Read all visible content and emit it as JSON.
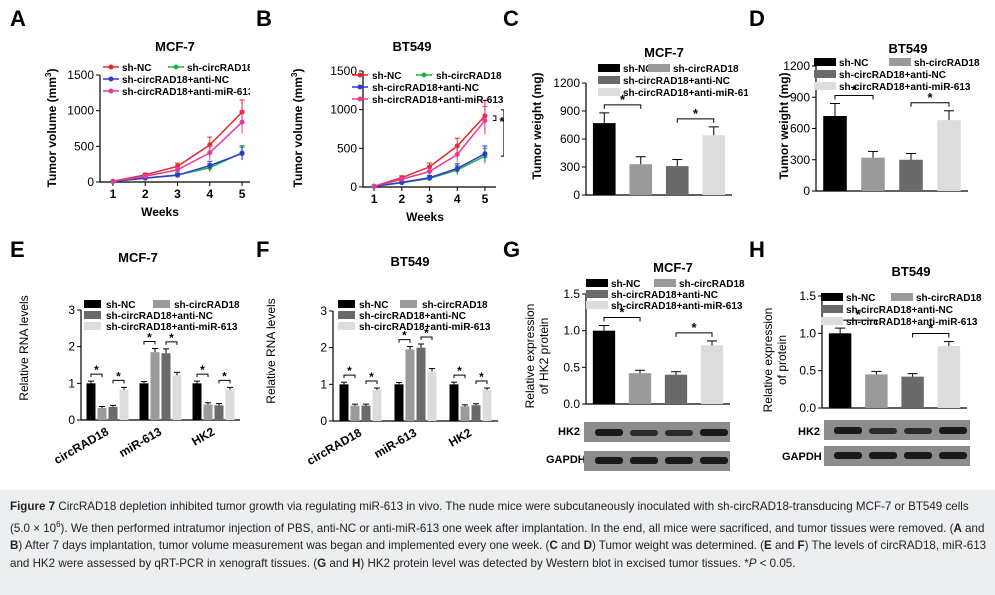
{
  "panels": {
    "A": {
      "letter": "A",
      "title": "MCF-7",
      "xlabel": "Weeks",
      "ylabel": "Tumor volume (mm3)",
      "ylabel_main": "Tumor volume (mm",
      "ylabel_sup": "3",
      "ylabel_close": ")"
    },
    "B": {
      "letter": "B",
      "title": "BT549",
      "xlabel": "Weeks",
      "ylabel": "Tumor volume (mm3)",
      "ylabel_main": "Tumor volume (mm",
      "ylabel_sup": "3",
      "ylabel_close": ")"
    },
    "C": {
      "letter": "C",
      "title": "MCF-7",
      "ylabel": "Tumor weight (mg)"
    },
    "D": {
      "letter": "D",
      "title": "BT549",
      "ylabel": "Tumor weight (mg)"
    },
    "E": {
      "letter": "E",
      "title": "MCF-7",
      "ylabel": "Relative RNA levels"
    },
    "F": {
      "letter": "F",
      "title": "BT549",
      "ylabel": "Relative RNA levels"
    },
    "G": {
      "letter": "G",
      "title": "MCF-7",
      "ylabel_line1": "Relative expression",
      "ylabel_line2": "of HK2 protein"
    },
    "H": {
      "letter": "H",
      "title": "BT549",
      "ylabel_line1": "Relative expression",
      "ylabel_line2": "of protein"
    }
  },
  "groups": [
    "sh-NC",
    "sh-circRAD18",
    "sh-circRAD18+anti-NC",
    "sh-circRAD18+anti-miR-613"
  ],
  "colors": {
    "line": [
      "#e8262a",
      "#22b24c",
      "#2b3bd0",
      "#e43b9a"
    ],
    "bar": [
      "#000000",
      "#9a9a9a",
      "#6a6a6a",
      "#dcdcdc"
    ]
  },
  "blot_labels": [
    "HK2",
    "GAPDH"
  ],
  "chart_data": [
    {
      "panel": "A",
      "type": "line",
      "title": "MCF-7",
      "xlabel": "Weeks",
      "ylabel": "Tumor volume (mm3)",
      "x": [
        1,
        2,
        3,
        4,
        5
      ],
      "xlim": [
        0.6,
        5.4
      ],
      "ylim": [
        0,
        1500
      ],
      "yticks": [
        0,
        500,
        1000,
        1500
      ],
      "series": [
        {
          "name": "sh-NC",
          "values": [
            10,
            100,
            220,
            520,
            980
          ],
          "err": [
            5,
            25,
            45,
            110,
            170
          ]
        },
        {
          "name": "sh-circRAD18",
          "values": [
            8,
            55,
            100,
            200,
            410
          ],
          "err": [
            4,
            15,
            30,
            60,
            100
          ]
        },
        {
          "name": "sh-circRAD18+anti-NC",
          "values": [
            8,
            55,
            95,
            230,
            400
          ],
          "err": [
            4,
            15,
            25,
            60,
            90
          ]
        },
        {
          "name": "sh-circRAD18+anti-miR-613",
          "values": [
            9,
            80,
            170,
            410,
            840
          ],
          "err": [
            5,
            20,
            40,
            100,
            160
          ]
        }
      ],
      "sig": [
        "*",
        "*"
      ]
    },
    {
      "panel": "B",
      "type": "line",
      "title": "BT549",
      "xlabel": "Weeks",
      "ylabel": "Tumor volume (mm3)",
      "x": [
        1,
        2,
        3,
        4,
        5
      ],
      "xlim": [
        0.6,
        5.4
      ],
      "ylim": [
        0,
        1500
      ],
      "yticks": [
        0,
        500,
        1000,
        1500
      ],
      "series": [
        {
          "name": "sh-NC",
          "values": [
            10,
            120,
            260,
            530,
            920
          ],
          "err": [
            5,
            25,
            50,
            100,
            200
          ]
        },
        {
          "name": "sh-circRAD18",
          "values": [
            8,
            55,
            110,
            220,
            400
          ],
          "err": [
            4,
            15,
            30,
            60,
            100
          ]
        },
        {
          "name": "sh-circRAD18+anti-NC",
          "values": [
            8,
            60,
            120,
            240,
            430
          ],
          "err": [
            4,
            15,
            30,
            60,
            100
          ]
        },
        {
          "name": "sh-circRAD18+anti-miR-613",
          "values": [
            9,
            100,
            200,
            420,
            860
          ],
          "err": [
            5,
            25,
            45,
            90,
            180
          ]
        }
      ],
      "sig": [
        "*",
        "*"
      ]
    },
    {
      "panel": "C",
      "type": "bar",
      "title": "MCF-7",
      "ylabel": "Tumor weight (mg)",
      "categories": [
        "sh-NC",
        "sh-circRAD18",
        "sh-circRAD18+anti-NC",
        "sh-circRAD18+anti-miR-613"
      ],
      "values": [
        770,
        330,
        310,
        640
      ],
      "err": [
        110,
        80,
        70,
        90
      ],
      "ylim": [
        0,
        1200
      ],
      "yticks": [
        0,
        300,
        600,
        900,
        1200
      ],
      "sig": [
        "*",
        "*"
      ]
    },
    {
      "panel": "D",
      "type": "bar",
      "title": "BT549",
      "ylabel": "Tumor weight (mg)",
      "categories": [
        "sh-NC",
        "sh-circRAD18",
        "sh-circRAD18+anti-NC",
        "sh-circRAD18+anti-miR-613"
      ],
      "values": [
        720,
        320,
        300,
        680
      ],
      "err": [
        120,
        60,
        60,
        90
      ],
      "ylim": [
        0,
        1200
      ],
      "yticks": [
        0,
        300,
        600,
        900,
        1200
      ],
      "sig": [
        "*",
        "*"
      ]
    },
    {
      "panel": "E",
      "type": "bar",
      "title": "MCF-7",
      "ylabel": "Relative RNA levels",
      "categories": [
        "circRAD18",
        "miR-613",
        "HK2"
      ],
      "series": [
        {
          "name": "sh-NC",
          "values": [
            1.0,
            1.0,
            1.0
          ],
          "err": [
            0.06,
            0.05,
            0.06
          ]
        },
        {
          "name": "sh-circRAD18",
          "values": [
            0.33,
            1.85,
            0.42
          ],
          "err": [
            0.04,
            0.1,
            0.05
          ]
        },
        {
          "name": "sh-circRAD18+anti-NC",
          "values": [
            0.36,
            1.82,
            0.4
          ],
          "err": [
            0.04,
            0.12,
            0.05
          ]
        },
        {
          "name": "sh-circRAD18+anti-miR-613",
          "values": [
            0.83,
            1.22,
            0.83
          ],
          "err": [
            0.06,
            0.08,
            0.06
          ]
        }
      ],
      "ylim": [
        0,
        3
      ],
      "yticks": [
        0,
        1,
        2,
        3
      ],
      "sig": [
        "*",
        "*",
        "*",
        "*",
        "*",
        "*"
      ]
    },
    {
      "panel": "F",
      "type": "bar",
      "title": "BT549",
      "ylabel": "Relative RNA levels",
      "categories": [
        "circRAD18",
        "miR-613",
        "HK2"
      ],
      "series": [
        {
          "name": "sh-NC",
          "values": [
            1.0,
            1.0,
            1.0
          ],
          "err": [
            0.06,
            0.05,
            0.06
          ]
        },
        {
          "name": "sh-circRAD18",
          "values": [
            0.42,
            1.95,
            0.4
          ],
          "err": [
            0.04,
            0.08,
            0.04
          ]
        },
        {
          "name": "sh-circRAD18+anti-NC",
          "values": [
            0.42,
            2.0,
            0.43
          ],
          "err": [
            0.04,
            0.1,
            0.04
          ]
        },
        {
          "name": "sh-circRAD18+anti-miR-613",
          "values": [
            0.85,
            1.35,
            0.85
          ],
          "err": [
            0.05,
            0.08,
            0.05
          ]
        }
      ],
      "ylim": [
        0,
        3
      ],
      "yticks": [
        0,
        1,
        2,
        3
      ],
      "sig": [
        "*",
        "*",
        "*",
        "*",
        "*",
        "*"
      ]
    },
    {
      "panel": "G",
      "type": "bar",
      "title": "MCF-7",
      "ylabel": "Relative expression of HK2 protein",
      "categories": [
        "sh-NC",
        "sh-circRAD18",
        "sh-circRAD18+anti-NC",
        "sh-circRAD18+anti-miR-613"
      ],
      "values": [
        1.0,
        0.42,
        0.4,
        0.8
      ],
      "err": [
        0.07,
        0.04,
        0.04,
        0.06
      ],
      "ylim": [
        0,
        1.5
      ],
      "yticks": [
        0.0,
        0.5,
        1.0,
        1.5
      ],
      "sig": [
        "*",
        "*"
      ]
    },
    {
      "panel": "H",
      "type": "bar",
      "title": "BT549",
      "ylabel": "Relative expression of protein",
      "categories": [
        "sh-NC",
        "sh-circRAD18",
        "sh-circRAD18+anti-NC",
        "sh-circRAD18+anti-miR-613"
      ],
      "values": [
        1.0,
        0.45,
        0.42,
        0.83
      ],
      "err": [
        0.07,
        0.04,
        0.04,
        0.06
      ],
      "ylim": [
        0,
        1.5
      ],
      "yticks": [
        0.0,
        0.5,
        1.0,
        1.5
      ],
      "sig": [
        "*",
        "*"
      ]
    }
  ],
  "caption": {
    "figure_label": "Figure 7",
    "title": " CircRAD18 depletion inhibited tumor growth via regulating miR-613 in vivo.",
    "s1": " The nude mice were subcutaneously inoculated with sh-circRAD18-transducing MCF-7 or BT549 cells (5.0 × 10",
    "s1_sup": "6",
    "s2": "). We then performed intratumor injection of PBS, anti-NC or anti-miR-613 one week after implantation. In the end, all mice were sacrificed, and tumor tissues were removed. (",
    "b_A": "A",
    "t_and1": " and ",
    "b_B": "B",
    "s3": ") After 7 days implantation, tumor volume measurement was began and implemented every one week. (",
    "b_C": "C",
    "t_and2": " and ",
    "b_D": "D",
    "s4": ") Tumor weight was determined. (",
    "b_E": "E",
    "t_and3": " and ",
    "b_F": "F",
    "s5": ") The levels of circRAD18, miR-613 and HK2 were assessed by qRT-PCR in xenograft tissues. (",
    "b_G": "G",
    "t_and4": " and ",
    "b_H": "H",
    "s6": ") HK2 protein level was detected by Western blot in excised tumor tissues. *",
    "p_italic": "P",
    "s7": " < 0.05."
  }
}
